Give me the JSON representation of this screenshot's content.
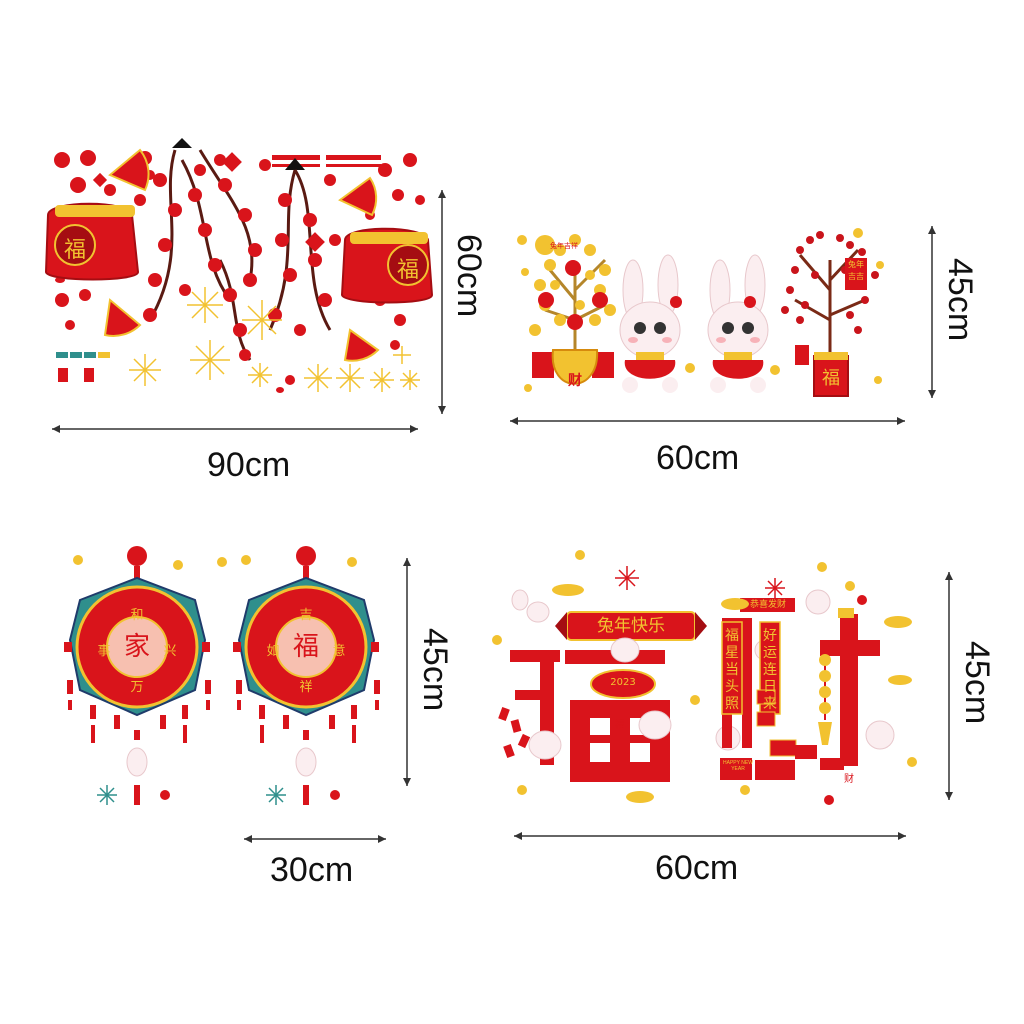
{
  "colors": {
    "red": "#d9141b",
    "darkRed": "#a50d12",
    "gold": "#f2c230",
    "orange": "#f08a1c",
    "teal": "#2f8f8c",
    "navy": "#1f3b6b",
    "pink": "#f7dfe2",
    "line": "#333333"
  },
  "panels": {
    "topLeft": {
      "width_label": "90cm",
      "height_label": "60cm",
      "bag_left_char": "福",
      "bag_right_char": "福"
    },
    "topRight": {
      "width_label": "60cm",
      "height_label": "45cm",
      "pot_left_char": "财",
      "pot_right_char": "福",
      "tag_left": "兔年吉祥",
      "tag_right_1": "兔年",
      "tag_right_2": "吉吉"
    },
    "bottomLeft": {
      "width_label": "30cm",
      "height_label": "45cm",
      "knot_left": {
        "center": "家",
        "top": "和",
        "left": "事",
        "right": "兴",
        "bottom": "万"
      },
      "knot_right": {
        "center": "福",
        "top": "吉",
        "left": "如",
        "right": "意",
        "bottom": "祥"
      }
    },
    "bottomRight": {
      "width_label": "60cm",
      "height_label": "45cm",
      "banner": "兔年快乐",
      "big_char_left": "福",
      "big_char_right": "财",
      "badge_year": "2023",
      "top_tag": "恭喜发财",
      "couplet_left": "福星当头照",
      "couplet_right": "好运连日来",
      "small_card": "HAPPY NEW YEAR"
    }
  }
}
